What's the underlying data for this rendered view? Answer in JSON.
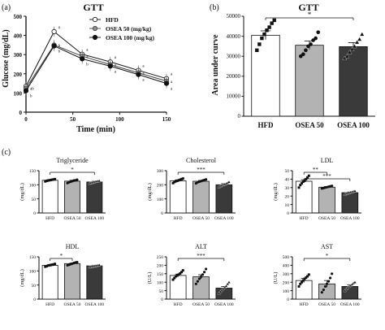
{
  "panel_labels": {
    "a": "(a)",
    "b": "(b)",
    "c": "(c)"
  },
  "chart_data": [
    {
      "id": "gtt_line",
      "type": "line",
      "title": "GTT",
      "xlabel": "Time (min)",
      "ylabel": "Glucose (mg/dL)",
      "xlim": [
        0,
        150
      ],
      "ylim": [
        0,
        500
      ],
      "xticks": [
        0,
        50,
        100,
        150
      ],
      "yticks": [
        0,
        100,
        200,
        300,
        400,
        500
      ],
      "x": [
        0,
        30,
        60,
        90,
        120,
        150
      ],
      "series": [
        {
          "name": "HFD",
          "marker": "open",
          "values": [
            135,
            420,
            302,
            262,
            218,
            175
          ],
          "sig": [
            "a",
            "a",
            "a",
            "a",
            "a",
            "a"
          ]
        },
        {
          "name": "OSEA 50 (mg/kg)",
          "marker": "grey",
          "values": [
            125,
            350,
            292,
            248,
            205,
            162
          ],
          "sig": [
            "ab",
            "b",
            "a",
            "a",
            "a",
            "a"
          ]
        },
        {
          "name": "OSEA 100 (mg/kg)",
          "marker": "black",
          "values": [
            112,
            345,
            278,
            240,
            196,
            150
          ],
          "sig": [
            "b",
            "b",
            "b",
            "a",
            "a",
            "a"
          ]
        }
      ],
      "legend_position": "top-right"
    },
    {
      "id": "gtt_auc",
      "type": "bar",
      "title": "GTT",
      "ylabel": "Area under curve",
      "ylim": [
        0,
        50000
      ],
      "yticks": [
        0,
        10000,
        20000,
        30000,
        40000,
        50000
      ],
      "categories": [
        "HFD",
        "OSEA 50",
        "OSEA 100"
      ],
      "values": [
        40500,
        35500,
        34800
      ],
      "errors": [
        2200,
        2100,
        2000
      ],
      "fills": [
        "#ffffff",
        "#b3b3b3",
        "#3a3a3a"
      ],
      "points": [
        [
          33000,
          36000,
          39000,
          41000,
          43000,
          44500,
          46500,
          48000
        ],
        [
          30000,
          31000,
          33000,
          35000,
          36000,
          38000,
          39000,
          42000
        ],
        [
          29000,
          30000,
          32000,
          33500,
          35000,
          37000,
          38500,
          41000
        ]
      ],
      "significance": [
        {
          "from": 0,
          "to": 2,
          "label": "*"
        }
      ]
    },
    {
      "id": "triglyceride",
      "type": "bar",
      "title": "Triglyceride",
      "ylabel": "(mg/dL)",
      "ylim": [
        0,
        150
      ],
      "yticks": [
        0,
        50,
        100,
        150
      ],
      "categories": [
        "HFD",
        "OSEA 50",
        "OSEA 100"
      ],
      "values": [
        116,
        113,
        110
      ],
      "errors": [
        2.5,
        3,
        2.5
      ],
      "fills": [
        "#ffffff",
        "#b3b3b3",
        "#3a3a3a"
      ],
      "points": [
        [
          112,
          114,
          115,
          116,
          117,
          118,
          119,
          120
        ],
        [
          106,
          109,
          111,
          113,
          115,
          116,
          118
        ],
        [
          105,
          107,
          108,
          110,
          111,
          112,
          113,
          114
        ]
      ],
      "significance": [
        {
          "from": 0,
          "to": 2,
          "label": "*"
        }
      ]
    },
    {
      "id": "cholesterol",
      "type": "bar",
      "title": "Cholesterol",
      "ylabel": "(mg/dL)",
      "ylim": [
        0,
        300
      ],
      "yticks": [
        0,
        100,
        200,
        300
      ],
      "categories": [
        "HFD",
        "OSEA 50",
        "OSEA 100"
      ],
      "values": [
        228,
        225,
        200
      ],
      "errors": [
        7,
        6,
        8
      ],
      "fills": [
        "#ffffff",
        "#b3b3b3",
        "#3a3a3a"
      ],
      "points": [
        [
          212,
          220,
          225,
          228,
          232,
          236,
          240,
          244
        ],
        [
          210,
          218,
          222,
          226,
          230,
          234,
          238
        ],
        [
          185,
          190,
          196,
          200,
          204,
          208,
          214,
          220
        ]
      ],
      "significance": [
        {
          "from": 0,
          "to": 2,
          "label": "***"
        }
      ]
    },
    {
      "id": "ldl",
      "type": "bar",
      "title": "LDL",
      "ylabel": "(mg/dL)",
      "ylim": [
        0,
        50
      ],
      "yticks": [
        0,
        10,
        20,
        30,
        40,
        50
      ],
      "categories": [
        "HFD",
        "OSEA 50",
        "OSEA 100"
      ],
      "values": [
        37.5,
        30.5,
        24
      ],
      "errors": [
        1.8,
        0.8,
        0.8
      ],
      "fills": [
        "#ffffff",
        "#b3b3b3",
        "#3a3a3a"
      ],
      "points": [
        [
          30,
          33,
          35,
          37,
          38,
          40,
          42,
          44
        ],
        [
          29,
          29.5,
          30,
          30.5,
          31,
          31.5,
          32
        ],
        [
          22,
          23,
          23.5,
          24,
          24.5,
          25,
          25.5,
          26
        ]
      ],
      "significance": [
        {
          "from": 0,
          "to": 1,
          "label": "**"
        },
        {
          "from": 0,
          "to": 2,
          "label": "***"
        }
      ]
    },
    {
      "id": "hdl",
      "type": "bar",
      "title": "HDL",
      "ylabel": "(mg/dL)",
      "ylim": [
        0,
        150
      ],
      "yticks": [
        0,
        50,
        100,
        150
      ],
      "categories": [
        "HFD",
        "OSEA 50",
        "OSEA 100"
      ],
      "values": [
        120,
        126,
        118
      ],
      "errors": [
        2,
        2,
        1.5
      ],
      "fills": [
        "#ffffff",
        "#b3b3b3",
        "#3a3a3a"
      ],
      "points": [
        [
          115,
          117,
          119,
          120,
          121,
          122,
          123,
          125
        ],
        [
          120,
          122,
          124,
          126,
          128,
          130,
          131
        ],
        [
          114,
          115,
          116,
          117,
          118,
          119,
          120,
          121
        ]
      ],
      "significance": [
        {
          "from": 0,
          "to": 1,
          "label": "*"
        }
      ]
    },
    {
      "id": "alt",
      "type": "bar",
      "title": "ALT",
      "ylabel": "(U/L)",
      "ylim": [
        0,
        250
      ],
      "yticks": [
        0,
        50,
        100,
        150,
        200,
        250
      ],
      "categories": [
        "HFD",
        "OSEA 50",
        "OSEA 100"
      ],
      "values": [
        140,
        132,
        65
      ],
      "errors": [
        8,
        12,
        10
      ],
      "fills": [
        "#ffffff",
        "#b3b3b3",
        "#3a3a3a"
      ],
      "points": [
        [
          115,
          125,
          135,
          140,
          145,
          152,
          160,
          170
        ],
        [
          90,
          105,
          120,
          132,
          145,
          160,
          178
        ],
        [
          35,
          45,
          55,
          62,
          70,
          78,
          90,
          100
        ]
      ],
      "significance": [
        {
          "from": 0,
          "to": 2,
          "label": "***"
        }
      ]
    },
    {
      "id": "ast",
      "type": "bar",
      "title": "AST",
      "ylabel": "(U/L)",
      "ylim": [
        0,
        500
      ],
      "yticks": [
        0,
        100,
        200,
        300,
        400,
        500
      ],
      "categories": [
        "HFD",
        "OSEA 50",
        "OSEA 100"
      ],
      "values": [
        220,
        180,
        150
      ],
      "errors": [
        25,
        40,
        20
      ],
      "fills": [
        "#ffffff",
        "#b3b3b3",
        "#3a3a3a"
      ],
      "points": [
        [
          150,
          180,
          200,
          220,
          240,
          255,
          270,
          290
        ],
        [
          80,
          110,
          150,
          180,
          210,
          250,
          300
        ],
        [
          100,
          120,
          135,
          150,
          160,
          175,
          190,
          200
        ]
      ],
      "significance": [
        {
          "from": 0,
          "to": 2,
          "label": "*"
        }
      ]
    }
  ]
}
